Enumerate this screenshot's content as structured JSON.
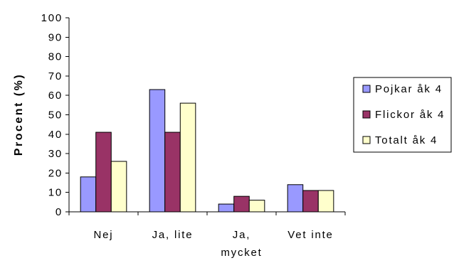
{
  "chart_data": {
    "type": "bar",
    "categories": [
      "Nej",
      "Ja, lite",
      "Ja, mycket",
      "Vet inte"
    ],
    "series": [
      {
        "name": "Pojkar åk 4",
        "color": "#9999FF",
        "values": [
          18,
          63,
          4,
          14
        ]
      },
      {
        "name": "Flickor åk 4",
        "color": "#993366",
        "values": [
          41,
          41,
          8,
          11
        ]
      },
      {
        "name": "Totalt åk 4",
        "color": "#FFFFCC",
        "values": [
          26,
          56,
          6,
          11
        ]
      }
    ],
    "xlabel": "",
    "ylabel": "Procent (%)",
    "ylim": [
      0,
      100
    ],
    "yticks": [
      "0",
      "10",
      "20",
      "30",
      "40",
      "50",
      "60",
      "70",
      "80",
      "90",
      "100"
    ],
    "grid": false,
    "legend": "right"
  }
}
